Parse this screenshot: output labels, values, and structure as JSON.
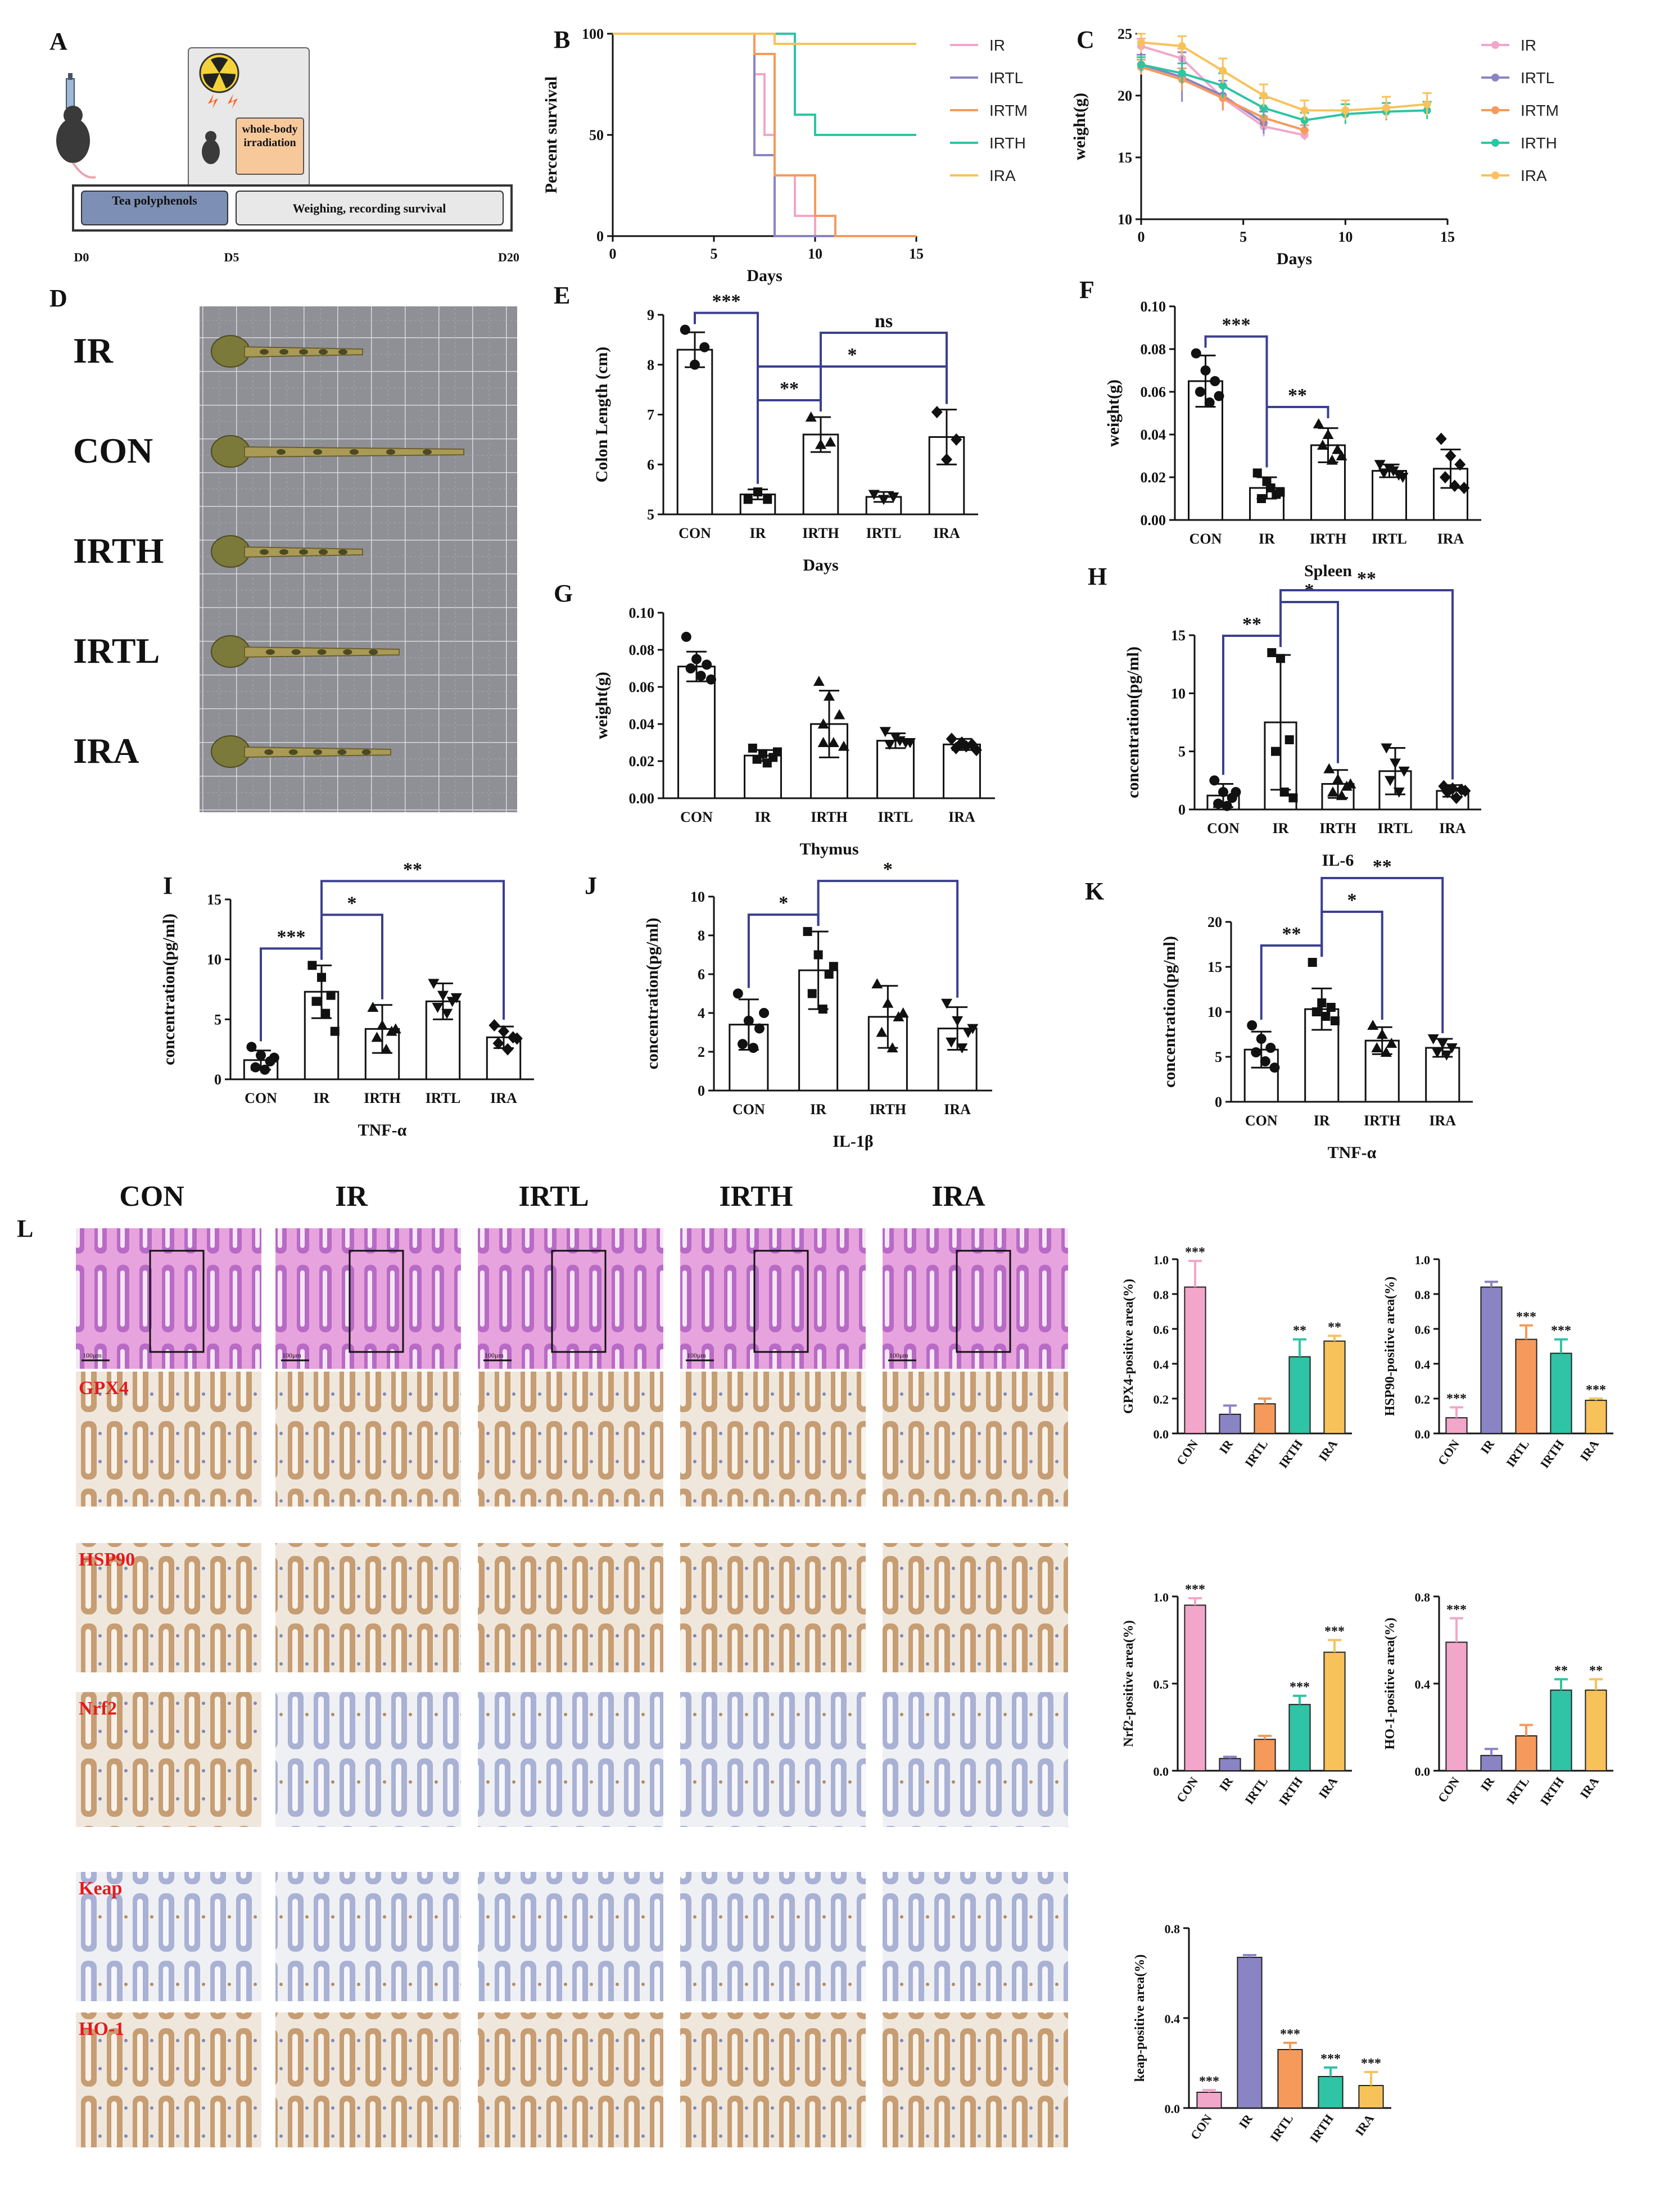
{
  "panels": {
    "A": {
      "letter": "A",
      "box_tea": "Tea polyphenols",
      "box_weigh": "Weighing, recording survival",
      "box_irr": "whole-body irradiation",
      "days": [
        "D0",
        "D5",
        "D20"
      ]
    },
    "D": {
      "letter": "D",
      "rows": [
        "IR",
        "CON",
        "IRTH",
        "IRTL",
        "IRA"
      ]
    },
    "L": {
      "letter": "L",
      "columns": [
        "CON",
        "IR",
        "IRTL",
        "IRTH",
        "IRA"
      ],
      "stains": [
        "GPX4",
        "HSP90",
        "Nrf2",
        "Keap",
        "HO-1"
      ],
      "scale_label": "100μm"
    }
  },
  "colors": {
    "IR": "#f2a6c9",
    "IRTL": "#8a84c4",
    "IRTM": "#f59a5b",
    "IRTH": "#2ec4a5",
    "IRA": "#f8c25a",
    "bracket": "#3b3f8f",
    "he_stain": "#c05bbf",
    "ihc_bg": "#efe4d6"
  },
  "chart_data": [
    {
      "id": "B",
      "letter": "B",
      "type": "line",
      "ylabel": "Percent survival",
      "xlabel": "Days",
      "xlim": [
        0,
        15
      ],
      "ylim": [
        0,
        100
      ],
      "xticks": [
        0,
        5,
        10,
        15
      ],
      "yticks": [
        0,
        50,
        100
      ],
      "legend": [
        "IR",
        "IRTL",
        "IRTM",
        "IRTH",
        "IRA"
      ],
      "series": [
        {
          "name": "IR",
          "color": "#f2a6c9",
          "steps": [
            [
              0,
              100
            ],
            [
              7,
              100
            ],
            [
              7,
              80
            ],
            [
              7.5,
              80
            ],
            [
              7.5,
              50
            ],
            [
              8,
              50
            ],
            [
              8,
              30
            ],
            [
              9,
              30
            ],
            [
              9,
              10
            ],
            [
              10,
              10
            ],
            [
              10,
              0
            ],
            [
              15,
              0
            ]
          ]
        },
        {
          "name": "IRTL",
          "color": "#8a84c4",
          "steps": [
            [
              0,
              100
            ],
            [
              7,
              100
            ],
            [
              7,
              40
            ],
            [
              8,
              40
            ],
            [
              8,
              0
            ],
            [
              15,
              0
            ]
          ]
        },
        {
          "name": "IRTM",
          "color": "#f59a5b",
          "steps": [
            [
              0,
              100
            ],
            [
              7,
              100
            ],
            [
              7,
              90
            ],
            [
              8,
              90
            ],
            [
              8,
              30
            ],
            [
              10,
              30
            ],
            [
              10,
              10
            ],
            [
              11,
              10
            ],
            [
              11,
              0
            ],
            [
              15,
              0
            ]
          ]
        },
        {
          "name": "IRTH",
          "color": "#2ec4a5",
          "steps": [
            [
              0,
              100
            ],
            [
              9,
              100
            ],
            [
              9,
              60
            ],
            [
              10,
              60
            ],
            [
              10,
              50
            ],
            [
              15,
              50
            ]
          ]
        },
        {
          "name": "IRA",
          "color": "#f8c25a",
          "steps": [
            [
              0,
              100
            ],
            [
              8,
              100
            ],
            [
              8,
              95
            ],
            [
              15,
              95
            ]
          ]
        }
      ]
    },
    {
      "id": "C",
      "letter": "C",
      "type": "line",
      "ylabel": "weight(g)",
      "xlabel": "Days",
      "xlim": [
        0,
        15
      ],
      "ylim": [
        10,
        25
      ],
      "xticks": [
        0,
        5,
        10,
        15
      ],
      "yticks": [
        10,
        15,
        20,
        25
      ],
      "legend": [
        "IR",
        "IRTL",
        "IRTM",
        "IRTH",
        "IRA"
      ],
      "series": [
        {
          "name": "IR",
          "color": "#f2a6c9",
          "x": [
            0,
            2,
            4,
            6,
            8
          ],
          "y": [
            24.0,
            23.0,
            19.8,
            17.5,
            16.8
          ],
          "err": [
            0.6,
            0.8,
            0.9,
            0.8,
            0.4
          ]
        },
        {
          "name": "IRTL",
          "color": "#8a84c4",
          "x": [
            0,
            2,
            4,
            6
          ],
          "y": [
            22.5,
            21.5,
            20.0,
            17.8
          ],
          "err": [
            0.8,
            2.0,
            1.2,
            0.9
          ]
        },
        {
          "name": "IRTM",
          "color": "#f59a5b",
          "x": [
            0,
            2,
            4,
            6,
            8
          ],
          "y": [
            22.3,
            21.3,
            19.8,
            18.2,
            17.2
          ],
          "err": [
            0.6,
            0.9,
            1.0,
            0.8,
            0.4
          ]
        },
        {
          "name": "IRTH",
          "color": "#2ec4a5",
          "x": [
            0,
            2,
            4,
            6,
            8,
            10,
            12,
            14
          ],
          "y": [
            22.5,
            21.8,
            20.8,
            19.0,
            18.0,
            18.5,
            18.7,
            18.8
          ],
          "err": [
            0.6,
            0.8,
            1.0,
            0.8,
            0.6,
            0.8,
            0.7,
            0.7
          ]
        },
        {
          "name": "IRA",
          "color": "#f8c25a",
          "x": [
            0,
            2,
            4,
            6,
            8,
            10,
            12,
            14
          ],
          "y": [
            24.3,
            24.0,
            22.0,
            20.0,
            18.8,
            18.8,
            19.0,
            19.3
          ],
          "err": [
            0.7,
            0.8,
            1.0,
            0.9,
            0.8,
            0.8,
            0.9,
            0.9
          ]
        }
      ]
    },
    {
      "id": "E",
      "letter": "E",
      "type": "bar",
      "ylabel": "Colon Length (cm)",
      "xlabel": "Days",
      "categories": [
        "CON",
        "IR",
        "IRTH",
        "IRTL",
        "IRA"
      ],
      "values": [
        8.3,
        5.4,
        6.6,
        5.35,
        6.55
      ],
      "err": [
        0.35,
        0.1,
        0.35,
        0.1,
        0.55
      ],
      "points": [
        [
          8.7,
          8.0,
          8.35
        ],
        [
          5.3,
          5.45,
          5.3
        ],
        [
          6.95,
          6.4,
          6.45
        ],
        [
          5.4,
          5.3,
          5.35
        ],
        [
          7.05,
          6.1,
          6.5
        ]
      ],
      "ylim": [
        5,
        9
      ],
      "yticks": [
        5,
        6,
        7,
        8,
        9
      ],
      "yfmt": 0,
      "brackets": [
        {
          "from": 0,
          "to": 1,
          "label": "***"
        },
        {
          "from": 1,
          "to": 2,
          "label": "**"
        },
        {
          "from": 1,
          "to": 4,
          "label": "*"
        },
        {
          "from": 2,
          "to": 4,
          "label": "ns"
        }
      ]
    },
    {
      "id": "F",
      "letter": "F",
      "type": "bar",
      "ylabel": "weight(g)",
      "xlabel": "Spleen",
      "categories": [
        "CON",
        "IR",
        "IRTH",
        "IRTL",
        "IRA"
      ],
      "values": [
        0.065,
        0.015,
        0.035,
        0.023,
        0.024
      ],
      "err": [
        0.012,
        0.005,
        0.008,
        0.003,
        0.009
      ],
      "points": [
        [
          0.078,
          0.07,
          0.065,
          0.06,
          0.055,
          0.058
        ],
        [
          0.022,
          0.018,
          0.012,
          0.01,
          0.015,
          0.013
        ],
        [
          0.045,
          0.04,
          0.033,
          0.035,
          0.028,
          0.03
        ],
        [
          0.026,
          0.024,
          0.021,
          0.022,
          0.023,
          0.02
        ],
        [
          0.038,
          0.03,
          0.026,
          0.02,
          0.016,
          0.015
        ]
      ],
      "ylim": [
        0,
        0.1
      ],
      "yticks": [
        0,
        0.02,
        0.04,
        0.06,
        0.08,
        0.1
      ],
      "yfmt": 2,
      "brackets": [
        {
          "from": 0,
          "to": 1,
          "label": "***"
        },
        {
          "from": 1,
          "to": 2,
          "label": "**"
        }
      ]
    },
    {
      "id": "G",
      "letter": "G",
      "type": "bar",
      "ylabel": "weight(g)",
      "xlabel": "Thymus",
      "categories": [
        "CON",
        "IR",
        "IRTH",
        "IRTL",
        "IRA"
      ],
      "values": [
        0.071,
        0.023,
        0.04,
        0.031,
        0.029
      ],
      "err": [
        0.008,
        0.003,
        0.018,
        0.004,
        0.003
      ],
      "points": [
        [
          0.087,
          0.075,
          0.072,
          0.07,
          0.066,
          0.064
        ],
        [
          0.027,
          0.024,
          0.022,
          0.021,
          0.019,
          0.025
        ],
        [
          0.063,
          0.055,
          0.045,
          0.04,
          0.03,
          0.028,
          0.03
        ],
        [
          0.036,
          0.033,
          0.03,
          0.029,
          0.031,
          0.03
        ],
        [
          0.032,
          0.03,
          0.029,
          0.027,
          0.028,
          0.026
        ]
      ],
      "ylim": [
        0,
        0.1
      ],
      "yticks": [
        0,
        0.02,
        0.04,
        0.06,
        0.08,
        0.1
      ],
      "yfmt": 2,
      "brackets": []
    },
    {
      "id": "H",
      "letter": "H",
      "type": "bar",
      "ylabel": "concentration(pg/ml)",
      "xlabel": "IL-6",
      "categories": [
        "CON",
        "IR",
        "IRTH",
        "IRTL",
        "IRA"
      ],
      "values": [
        1.2,
        7.5,
        2.2,
        3.3,
        1.6
      ],
      "err": [
        1.0,
        5.8,
        1.2,
        2.0,
        0.5
      ],
      "points": [
        [
          2.5,
          1.5,
          1.0,
          0.5,
          0.3,
          1.5
        ],
        [
          13.5,
          13.0,
          6.0,
          5.0,
          1.5,
          1.0
        ],
        [
          3.5,
          2.6,
          2.0,
          1.5,
          1.2,
          2.2
        ],
        [
          5.3,
          4.0,
          3.3,
          2.5,
          1.5
        ],
        [
          2.0,
          1.8,
          1.7,
          1.5,
          1.0,
          1.6
        ]
      ],
      "ylim": [
        0,
        15
      ],
      "yticks": [
        0,
        5,
        10,
        15
      ],
      "yfmt": 0,
      "brackets": [
        {
          "from": 0,
          "to": 1,
          "label": "**"
        },
        {
          "from": 1,
          "to": 2,
          "label": "*"
        },
        {
          "from": 1,
          "to": 4,
          "label": "**"
        }
      ]
    },
    {
      "id": "I",
      "letter": "I",
      "type": "bar",
      "ylabel": "concentration(pg/ml)",
      "xlabel": "TNF-α",
      "categories": [
        "CON",
        "IR",
        "IRTH",
        "IRTL",
        "IRA"
      ],
      "values": [
        1.6,
        7.3,
        4.2,
        6.5,
        3.5
      ],
      "err": [
        0.8,
        2.2,
        2.0,
        1.5,
        0.9
      ],
      "points": [
        [
          2.7,
          2.0,
          1.5,
          1.0,
          0.8,
          1.8
        ],
        [
          9.5,
          8.5,
          7.0,
          6.5,
          5.5,
          4.0
        ],
        [
          6.0,
          4.5,
          4.0,
          3.5,
          2.5,
          4.2
        ],
        [
          8.0,
          7.0,
          6.5,
          6.0,
          5.5,
          6.8
        ],
        [
          4.5,
          4.0,
          3.5,
          3.0,
          2.5,
          3.4
        ]
      ],
      "ylim": [
        0,
        15
      ],
      "yticks": [
        0,
        5,
        10,
        15
      ],
      "yfmt": 0,
      "brackets": [
        {
          "from": 0,
          "to": 1,
          "label": "***"
        },
        {
          "from": 1,
          "to": 2,
          "label": "*"
        },
        {
          "from": 1,
          "to": 4,
          "label": "**"
        }
      ]
    },
    {
      "id": "J",
      "letter": "J",
      "type": "bar",
      "ylabel": "concentration(pg/ml)",
      "xlabel": "IL-1β",
      "categories": [
        "CON",
        "IR",
        "IRTH",
        "IRA"
      ],
      "values": [
        3.4,
        6.2,
        3.8,
        3.2
      ],
      "err": [
        1.3,
        2.0,
        1.6,
        1.1
      ],
      "points": [
        [
          5.0,
          3.6,
          3.2,
          2.4,
          2.2,
          4.0
        ],
        [
          8.2,
          7.0,
          6.0,
          5.0,
          4.2,
          6.4
        ],
        [
          5.5,
          4.5,
          3.8,
          3.0,
          2.2,
          4.0
        ],
        [
          4.5,
          3.6,
          3.0,
          2.5,
          2.2,
          3.2
        ]
      ],
      "ylim": [
        0,
        10
      ],
      "yticks": [
        0,
        2,
        4,
        6,
        8,
        10
      ],
      "yfmt": 0,
      "brackets": [
        {
          "from": 0,
          "to": 1,
          "label": "*"
        },
        {
          "from": 1,
          "to": 3,
          "label": "*"
        }
      ]
    },
    {
      "id": "K",
      "letter": "K",
      "type": "bar",
      "ylabel": "concentration(pg/ml)",
      "xlabel": "TNF-α",
      "categories": [
        "CON",
        "IR",
        "IRTH",
        "IRA"
      ],
      "values": [
        5.8,
        10.3,
        6.8,
        6.0
      ],
      "err": [
        2.0,
        2.3,
        1.5,
        1.0
      ],
      "points": [
        [
          8.5,
          7.0,
          6.0,
          5.5,
          4.5,
          3.8
        ],
        [
          15.5,
          11.0,
          10.5,
          10.0,
          9.5,
          9.0
        ],
        [
          8.5,
          7.5,
          6.5,
          6.0,
          5.5
        ],
        [
          7.0,
          6.5,
          6.0,
          5.5,
          5.2
        ]
      ],
      "ylim": [
        0,
        20
      ],
      "yticks": [
        0,
        5,
        10,
        15,
        20
      ],
      "yfmt": 0,
      "brackets": [
        {
          "from": 0,
          "to": 1,
          "label": "**"
        },
        {
          "from": 1,
          "to": 2,
          "label": "*"
        },
        {
          "from": 1,
          "to": 3,
          "label": "**"
        }
      ]
    },
    {
      "id": "L1",
      "type": "bar",
      "ylabel": "GPX4-positive area(%)",
      "categories": [
        "CON",
        "IR",
        "IRTL",
        "IRTH",
        "IRA"
      ],
      "values": [
        0.84,
        0.11,
        0.17,
        0.44,
        0.53
      ],
      "err": [
        0.15,
        0.05,
        0.03,
        0.1,
        0.03
      ],
      "labels": [
        "***",
        "",
        "",
        "**",
        "**"
      ],
      "ylim": [
        0,
        1.0
      ],
      "yticks": [
        0,
        0.2,
        0.4,
        0.6,
        0.8,
        1.0
      ],
      "yfmt": 1
    },
    {
      "id": "L2",
      "type": "bar",
      "ylabel": "HSP90-positive area(%)",
      "categories": [
        "CON",
        "IR",
        "IRTL",
        "IRTH",
        "IRA"
      ],
      "values": [
        0.09,
        0.84,
        0.54,
        0.46,
        0.19
      ],
      "err": [
        0.06,
        0.03,
        0.08,
        0.08,
        0.01
      ],
      "labels": [
        "***",
        "",
        "***",
        "***",
        "***"
      ],
      "ylim": [
        0,
        1.0
      ],
      "yticks": [
        0,
        0.2,
        0.4,
        0.6,
        0.8,
        1.0
      ],
      "yfmt": 1
    },
    {
      "id": "L3",
      "type": "bar",
      "ylabel": "Nrf2-positive area(%)",
      "categories": [
        "CON",
        "IR",
        "IRTL",
        "IRTH",
        "IRA"
      ],
      "values": [
        0.95,
        0.07,
        0.18,
        0.38,
        0.68
      ],
      "err": [
        0.04,
        0.01,
        0.02,
        0.05,
        0.07
      ],
      "labels": [
        "***",
        "",
        "",
        "***",
        "***"
      ],
      "ylim": [
        0,
        1.0
      ],
      "yticks": [
        0,
        0.5,
        1.0
      ],
      "yfmt": 1
    },
    {
      "id": "L4",
      "type": "bar",
      "ylabel": "HO-1-positive area(%)",
      "categories": [
        "CON",
        "IR",
        "IRTL",
        "IRTH",
        "IRA"
      ],
      "values": [
        0.59,
        0.07,
        0.16,
        0.37,
        0.37
      ],
      "err": [
        0.11,
        0.03,
        0.05,
        0.05,
        0.05
      ],
      "labels": [
        "***",
        "",
        "",
        "**",
        "**"
      ],
      "ylim": [
        0,
        0.8
      ],
      "yticks": [
        0,
        0.4,
        0.8
      ],
      "yfmt": 1
    },
    {
      "id": "L5",
      "type": "bar",
      "ylabel": "keap-positive area(%)",
      "categories": [
        "CON",
        "IR",
        "IRTL",
        "IRTH",
        "IRA"
      ],
      "values": [
        0.07,
        0.67,
        0.26,
        0.14,
        0.1
      ],
      "err": [
        0.01,
        0.01,
        0.03,
        0.04,
        0.06
      ],
      "labels": [
        "***",
        "",
        "***",
        "***",
        "***"
      ],
      "ylim": [
        0,
        0.8
      ],
      "yticks": [
        0,
        0.4,
        0.8
      ],
      "yfmt": 1
    }
  ]
}
